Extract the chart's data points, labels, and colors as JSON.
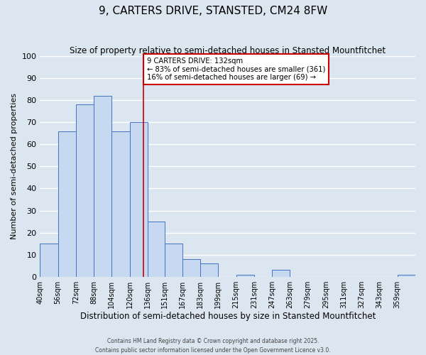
{
  "title": "9, CARTERS DRIVE, STANSTED, CM24 8FW",
  "subtitle": "Size of property relative to semi-detached houses in Stansted Mountfitchet",
  "xlabel": "Distribution of semi-detached houses by size in Stansted Mountfitchet",
  "ylabel": "Number of semi-detached properties",
  "bins": [
    "40sqm",
    "56sqm",
    "72sqm",
    "88sqm",
    "104sqm",
    "120sqm",
    "136sqm",
    "151sqm",
    "167sqm",
    "183sqm",
    "199sqm",
    "215sqm",
    "231sqm",
    "247sqm",
    "263sqm",
    "279sqm",
    "295sqm",
    "311sqm",
    "327sqm",
    "343sqm",
    "359sqm"
  ],
  "bin_left_edges": [
    40,
    56,
    72,
    88,
    104,
    120,
    136,
    151,
    167,
    183,
    199,
    215,
    231,
    247,
    263,
    279,
    295,
    311,
    327,
    343,
    359
  ],
  "bin_widths": [
    16,
    16,
    16,
    16,
    16,
    16,
    15,
    16,
    16,
    16,
    16,
    16,
    16,
    16,
    16,
    16,
    16,
    16,
    16,
    16,
    16
  ],
  "values": [
    15,
    66,
    78,
    82,
    66,
    70,
    25,
    15,
    8,
    6,
    0,
    1,
    0,
    3,
    0,
    0,
    0,
    0,
    0,
    0,
    1
  ],
  "property_size": 132,
  "property_label": "9 CARTERS DRIVE: 132sqm",
  "pct_smaller": 83,
  "count_smaller": 361,
  "pct_larger": 16,
  "count_larger": 69,
  "bar_color": "#c6d9f1",
  "bar_edge_color": "#4472c4",
  "vline_color": "#cc0000",
  "annotation_box_edge": "#cc0000",
  "background_color": "#dce6f1",
  "plot_bg_color": "#dce6f1",
  "grid_color": "#ffffff",
  "footer_line1": "Contains HM Land Registry data © Crown copyright and database right 2025.",
  "footer_line2": "Contains public sector information licensed under the Open Government Licence v3.0.",
  "ylim": [
    0,
    100
  ],
  "yticks": [
    0,
    10,
    20,
    30,
    40,
    50,
    60,
    70,
    80,
    90,
    100
  ]
}
